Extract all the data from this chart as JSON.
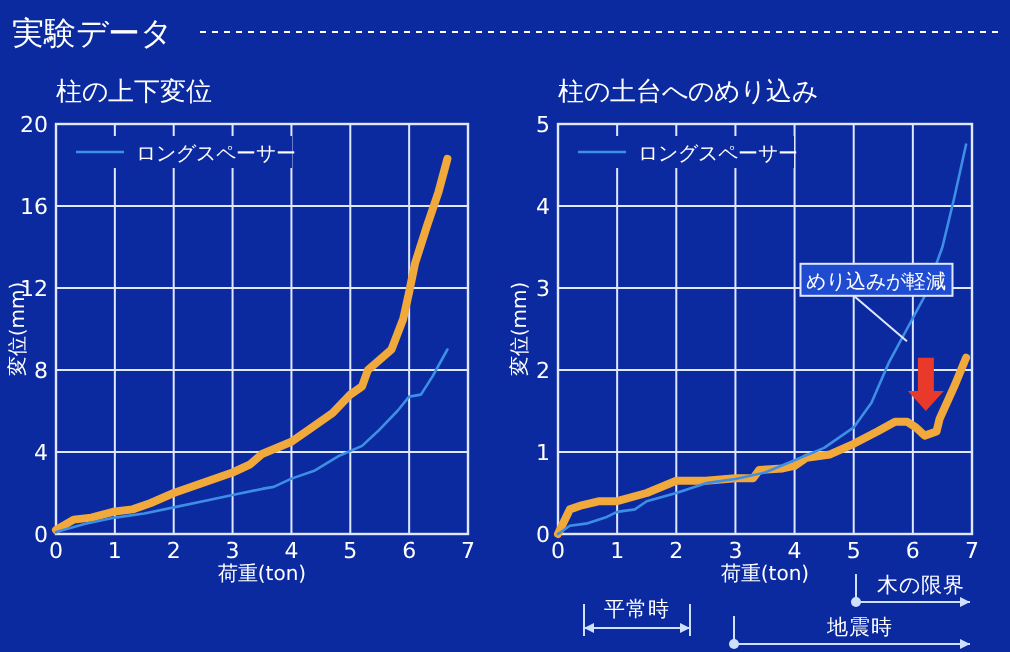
{
  "chart_data": [
    {
      "type": "line",
      "title": "柱の上下変位",
      "xlabel": "荷重(ton)",
      "ylabel": "変位(mm)",
      "annotations": [
        "実験データ"
      ],
      "xlim": [
        0,
        7
      ],
      "ylim": [
        0,
        20
      ],
      "xticks": [
        0,
        1,
        2,
        3,
        4,
        5,
        6,
        7
      ],
      "yticks": [
        0,
        4,
        8,
        12,
        16,
        20
      ],
      "grid": true,
      "legend": "top left",
      "marker": "none",
      "line_style": "solid",
      "series": [
        {
          "color": "#f2a93b",
          "x": [
            0,
            0.3,
            0.6,
            1,
            1.3,
            1.6,
            2,
            2.5,
            3,
            3.3,
            3.5,
            4,
            4.3,
            4.7,
            5,
            5.2,
            5.3,
            5.5,
            5.7,
            5.9,
            6,
            6.1,
            6.3,
            6.5,
            6.65
          ],
          "values": [
            0.2,
            0.7,
            0.8,
            1.1,
            1.2,
            1.5,
            2,
            2.5,
            3,
            3.4,
            3.9,
            4.5,
            5.1,
            5.9,
            6.8,
            7.2,
            8,
            8.5,
            9,
            10.5,
            11.8,
            13.2,
            15,
            16.7,
            18.3
          ]
        },
        {
          "name": "ロングスペーサー",
          "color": "#3d8fe6",
          "x": [
            0,
            0.5,
            1,
            1.5,
            2,
            2.5,
            3,
            3.5,
            3.7,
            4,
            4.4,
            4.8,
            5.2,
            5.5,
            5.8,
            6,
            6.2,
            6.4,
            6.65
          ],
          "values": [
            0.1,
            0.5,
            0.8,
            1,
            1.3,
            1.6,
            1.9,
            2.2,
            2.3,
            2.7,
            3.1,
            3.8,
            4.3,
            5.1,
            6,
            6.7,
            6.8,
            7.7,
            9
          ]
        }
      ]
    },
    {
      "type": "line",
      "title": "柱の土台へのめり込み",
      "xlabel": "荷重(ton)",
      "ylabel": "変位(mm)",
      "annotations": [
        {
          "text": "めり込みが軽減",
          "x": 5.9,
          "y": 2.35
        },
        "平常時",
        "地震時",
        "木の限界"
      ],
      "xlim": [
        0,
        7
      ],
      "ylim": [
        0,
        5
      ],
      "xticks": [
        0,
        1,
        2,
        3,
        4,
        5,
        6,
        7
      ],
      "yticks": [
        0,
        1,
        2,
        3,
        4,
        5
      ],
      "grid": true,
      "legend": "top left",
      "marker": "none",
      "line_style": "solid",
      "series": [
        {
          "color": "#f2a93b",
          "x": [
            0,
            0.2,
            0.4,
            0.7,
            1,
            1.5,
            2,
            2.5,
            3,
            3.3,
            3.4,
            3.8,
            4,
            4.2,
            4.6,
            5,
            5.4,
            5.7,
            5.9,
            6.05,
            6.2,
            6.4,
            6.45,
            6.7,
            6.9
          ],
          "values": [
            0,
            0.3,
            0.35,
            0.4,
            0.4,
            0.5,
            0.65,
            0.65,
            0.68,
            0.68,
            0.78,
            0.8,
            0.83,
            0.93,
            0.97,
            1.1,
            1.25,
            1.37,
            1.37,
            1.3,
            1.2,
            1.25,
            1.4,
            1.8,
            2.15
          ]
        },
        {
          "name": "ロングスペーサー",
          "color": "#3d8fe6",
          "x": [
            0,
            0.2,
            0.5,
            0.8,
            1,
            1.3,
            1.5,
            2,
            2.5,
            3,
            3.5,
            4,
            4.5,
            5,
            5.3,
            5.6,
            5.9,
            6.2,
            6.5,
            6.7,
            6.9
          ],
          "values": [
            0,
            0.1,
            0.13,
            0.2,
            0.27,
            0.3,
            0.4,
            0.5,
            0.62,
            0.67,
            0.75,
            0.9,
            1.05,
            1.3,
            1.6,
            2.1,
            2.5,
            2.9,
            3.5,
            4.1,
            4.75
          ]
        }
      ]
    }
  ]
}
